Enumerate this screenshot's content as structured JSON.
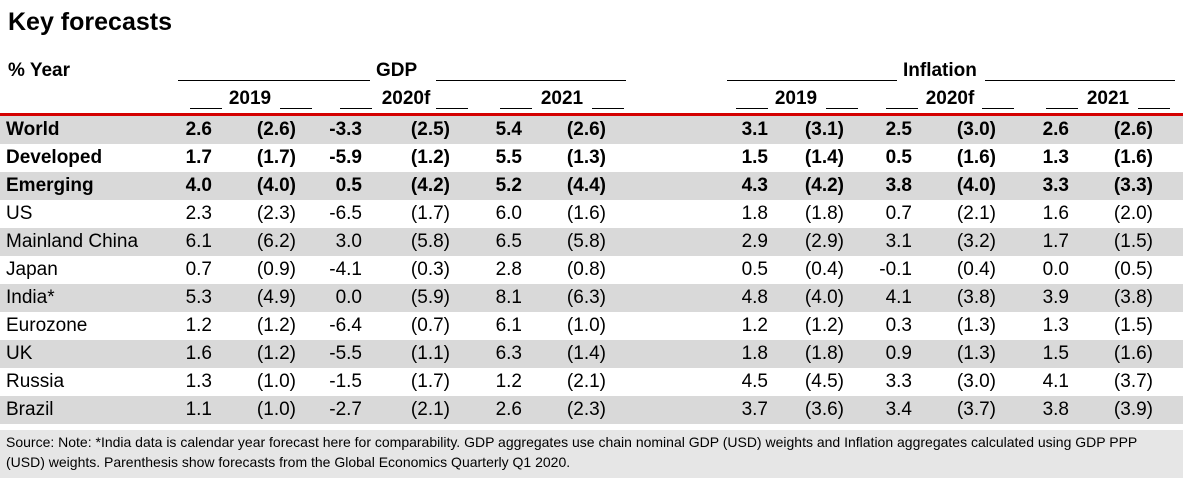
{
  "title": "Key forecasts",
  "header": {
    "pct_year": "% Year",
    "gdp": "GDP",
    "inflation": "Inflation",
    "years": [
      "2019",
      "2020f",
      "2021"
    ]
  },
  "rows": [
    {
      "label": "World",
      "bold": true,
      "shade": true,
      "values": [
        "2.6",
        "(2.6)",
        "-3.3",
        "(2.5)",
        "5.4",
        "(2.6)",
        "3.1",
        "(3.1)",
        "2.5",
        "(3.0)",
        "2.6",
        "(2.6)"
      ]
    },
    {
      "label": "Developed",
      "bold": true,
      "shade": false,
      "values": [
        "1.7",
        "(1.7)",
        "-5.9",
        "(1.2)",
        "5.5",
        "(1.3)",
        "1.5",
        "(1.4)",
        "0.5",
        "(1.6)",
        "1.3",
        "(1.6)"
      ]
    },
    {
      "label": "Emerging",
      "bold": true,
      "shade": true,
      "values": [
        "4.0",
        "(4.0)",
        "0.5",
        "(4.2)",
        "5.2",
        "(4.4)",
        "4.3",
        "(4.2)",
        "3.8",
        "(4.0)",
        "3.3",
        "(3.3)"
      ]
    },
    {
      "label": "US",
      "bold": false,
      "shade": false,
      "values": [
        "2.3",
        "(2.3)",
        "-6.5",
        "(1.7)",
        "6.0",
        "(1.6)",
        "1.8",
        "(1.8)",
        "0.7",
        "(2.1)",
        "1.6",
        "(2.0)"
      ]
    },
    {
      "label": "Mainland China",
      "bold": false,
      "shade": true,
      "values": [
        "6.1",
        "(6.2)",
        "3.0",
        "(5.8)",
        "6.5",
        "(5.8)",
        "2.9",
        "(2.9)",
        "3.1",
        "(3.2)",
        "1.7",
        "(1.5)"
      ]
    },
    {
      "label": "Japan",
      "bold": false,
      "shade": false,
      "values": [
        "0.7",
        "(0.9)",
        "-4.1",
        "(0.3)",
        "2.8",
        "(0.8)",
        "0.5",
        "(0.4)",
        "-0.1",
        "(0.4)",
        "0.0",
        "(0.5)"
      ]
    },
    {
      "label": "India*",
      "bold": false,
      "shade": true,
      "values": [
        "5.3",
        "(4.9)",
        "0.0",
        "(5.9)",
        "8.1",
        "(6.3)",
        "4.8",
        "(4.0)",
        "4.1",
        "(3.8)",
        "3.9",
        "(3.8)"
      ]
    },
    {
      "label": "Eurozone",
      "bold": false,
      "shade": false,
      "values": [
        "1.2",
        "(1.2)",
        "-6.4",
        "(0.7)",
        "6.1",
        "(1.0)",
        "1.2",
        "(1.2)",
        "0.3",
        "(1.3)",
        "1.3",
        "(1.5)"
      ]
    },
    {
      "label": "UK",
      "bold": false,
      "shade": true,
      "values": [
        "1.6",
        "(1.2)",
        "-5.5",
        "(1.1)",
        "6.3",
        "(1.4)",
        "1.8",
        "(1.8)",
        "0.9",
        "(1.3)",
        "1.5",
        "(1.6)"
      ]
    },
    {
      "label": "Russia",
      "bold": false,
      "shade": false,
      "values": [
        "1.3",
        "(1.0)",
        "-1.5",
        "(1.7)",
        "1.2",
        "(2.1)",
        "4.5",
        "(4.5)",
        "3.3",
        "(3.0)",
        "4.1",
        "(3.7)"
      ]
    },
    {
      "label": "Brazil",
      "bold": false,
      "shade": true,
      "values": [
        "1.1",
        "(1.0)",
        "-2.7",
        "(2.1)",
        "2.6",
        "(2.3)",
        "3.7",
        "(3.6)",
        "3.4",
        "(3.7)",
        "3.8",
        "(3.9)"
      ]
    }
  ],
  "source": "Source: Note: *India data is calendar year forecast here for comparability. GDP aggregates use chain nominal GDP (USD) weights and Inflation aggregates calculated using GDP PPP (USD) weights. Parenthesis show forecasts from the Global Economics Quarterly Q1 2020."
}
